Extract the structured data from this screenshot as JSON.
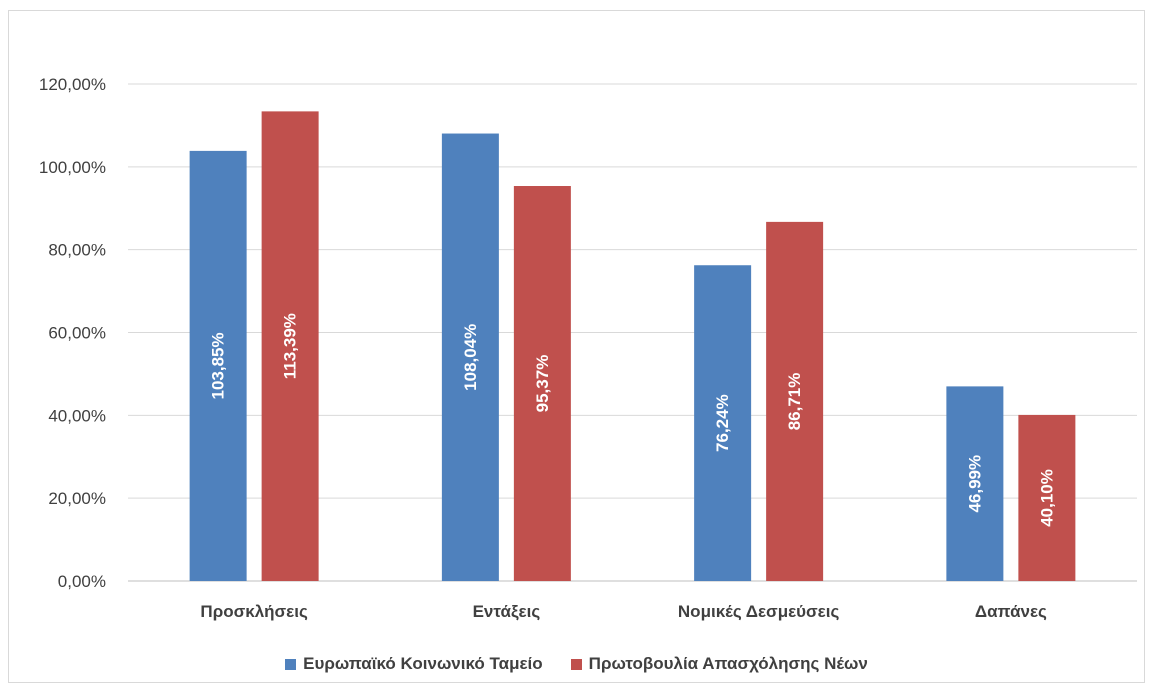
{
  "chart_data": {
    "type": "bar",
    "title": "",
    "xlabel": "",
    "ylabel": "",
    "categories": [
      "Προσκλήσεις",
      "Εντάξεις",
      "Νομικές Δεσμεύσεις",
      "Δαπάνες"
    ],
    "series": [
      {
        "name": "Ευρωπαϊκό Κοινωνικό Ταμείο",
        "color": "#4f81bd",
        "values": [
          103.85,
          108.04,
          76.24,
          46.99
        ],
        "labels": [
          "103,85%",
          "108,04%",
          "76,24%",
          "46,99%"
        ]
      },
      {
        "name": "Πρωτοβουλία Απασχόλησης Νέων",
        "color": "#c0504d",
        "values": [
          113.39,
          95.37,
          86.71,
          40.1
        ],
        "labels": [
          "113,39%",
          "95,37%",
          "86,71%",
          "40,10%"
        ]
      }
    ],
    "ylim": [
      0,
      120
    ],
    "yticks": [
      0,
      20,
      40,
      60,
      80,
      100,
      120
    ],
    "ytick_labels": [
      "0,00%",
      "20,00%",
      "40,00%",
      "60,00%",
      "80,00%",
      "100,00%",
      "120,00%"
    ],
    "grid": true,
    "legend_position": "bottom"
  }
}
